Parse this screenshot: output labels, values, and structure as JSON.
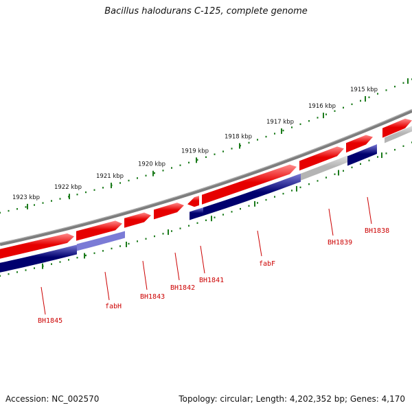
{
  "title": "Bacillus halodurans C-125, complete genome",
  "footer": {
    "accession": "Accession: NC_002570",
    "summary": "Topology: circular; Length: 4,202,352 bp; Genes: 4,170"
  },
  "colors": {
    "backbone": "#7d7d7d",
    "forward_gene": "#e60000",
    "forward_gene_highlight": "#ff8c8c",
    "reverse_gene": "#00006e",
    "reverse_gene_highlight": "#7b7bd6",
    "non_coding": "#b4b4b4",
    "tick_green": "#1a7a1a",
    "label_red": "#cc0000"
  },
  "scale": {
    "unit": "kbp",
    "ticks": [
      "1923 kbp",
      "1922 kbp",
      "1921 kbp",
      "1920 kbp",
      "1919 kbp",
      "1918 kbp",
      "1917 kbp",
      "1916 kbp",
      "1915 kbp"
    ]
  },
  "genes": [
    {
      "name": "BH1845",
      "strand": "reverse",
      "type": "CDS"
    },
    {
      "name": "fabH",
      "strand": "reverse",
      "type": "CDS"
    },
    {
      "name": "BH1843",
      "strand": "forward",
      "type": "CDS"
    },
    {
      "name": "BH1842",
      "strand": "forward",
      "type": "CDS"
    },
    {
      "name": "BH1841",
      "strand": "forward",
      "type": "CDS"
    },
    {
      "name": "fabF",
      "strand": "reverse",
      "type": "CDS"
    },
    {
      "name": "BH1839",
      "strand": "forward",
      "type": "CDS"
    },
    {
      "name": "BH1838",
      "strand": "reverse",
      "type": "CDS"
    }
  ]
}
